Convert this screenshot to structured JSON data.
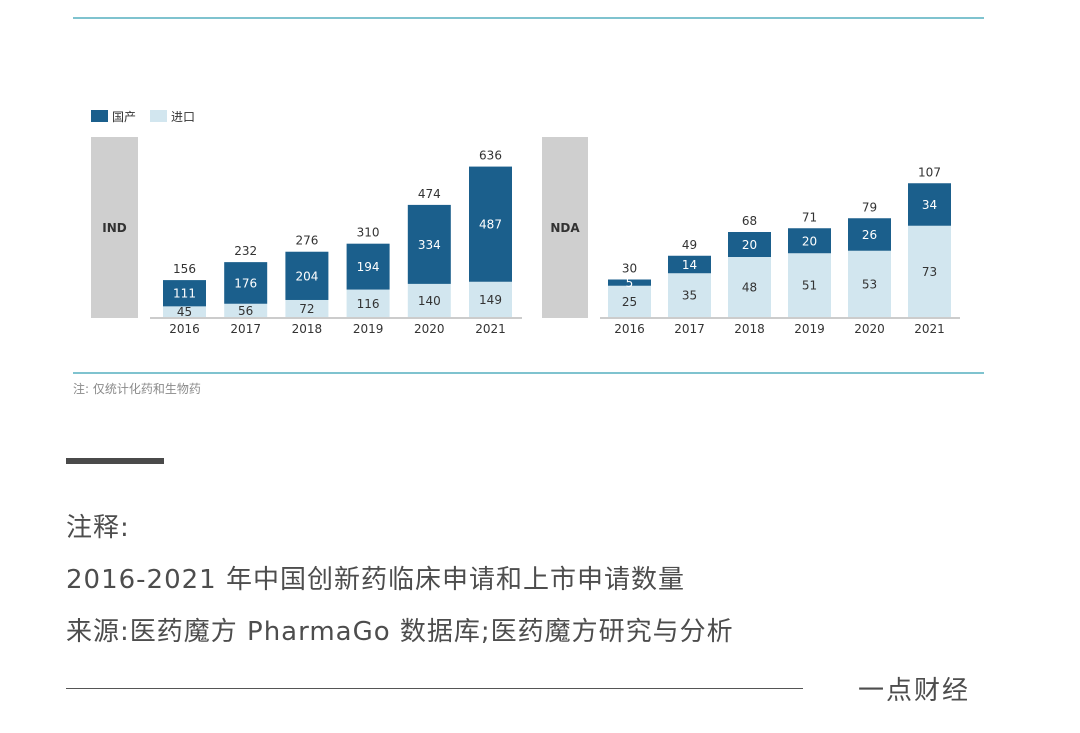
{
  "chart_data": [
    {
      "type": "bar",
      "stacked": true,
      "panel_label": "IND",
      "categories": [
        "2016",
        "2017",
        "2018",
        "2019",
        "2020",
        "2021"
      ],
      "series": [
        {
          "name": "国产",
          "values": [
            111,
            176,
            204,
            194,
            334,
            487
          ]
        },
        {
          "name": "进口",
          "values": [
            45,
            56,
            72,
            116,
            140,
            149
          ]
        }
      ],
      "totals": [
        156,
        232,
        276,
        310,
        474,
        636
      ],
      "ylim": [
        0,
        636
      ]
    },
    {
      "type": "bar",
      "stacked": true,
      "panel_label": "NDA",
      "categories": [
        "2016",
        "2017",
        "2018",
        "2019",
        "2020",
        "2021"
      ],
      "series": [
        {
          "name": "国产",
          "values": [
            5,
            14,
            20,
            20,
            26,
            34
          ]
        },
        {
          "name": "进口",
          "values": [
            25,
            35,
            48,
            51,
            53,
            73
          ]
        }
      ],
      "totals": [
        30,
        49,
        68,
        71,
        79,
        107
      ],
      "ylim": [
        0,
        107
      ]
    }
  ],
  "legend": {
    "placement": "top-left",
    "items": [
      "国产",
      "进口"
    ]
  },
  "colors": {
    "domestic": "#1b5f8c",
    "imported": "#d2e6ef",
    "panel_label_bg": "#cfcfcf",
    "rule": "#7fc3cf"
  },
  "note": "注:  仅统计化药和生物药",
  "caption": {
    "title": "注释:",
    "description": "2016-2021 年中国创新药临床申请和上市申请数量",
    "source": "来源:医药魔方 PharmaGo 数据库;医药魔方研究与分析"
  },
  "brand": "一点财经"
}
